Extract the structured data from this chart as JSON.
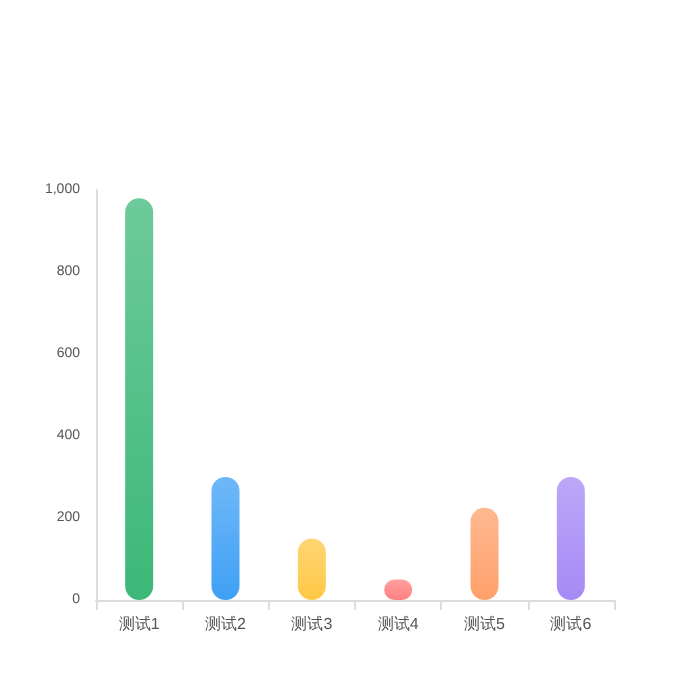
{
  "chart_data": {
    "type": "bar",
    "categories": [
      "测试1",
      "测试2",
      "测试3",
      "测试4",
      "测试5",
      "测试6"
    ],
    "values": [
      980,
      300,
      150,
      50,
      225,
      300
    ],
    "colors": [
      "#3cb878",
      "#3fa0f5",
      "#ffc845",
      "#ff8080",
      "#ffa06b",
      "#a68af5"
    ],
    "ylim": [
      0,
      1000
    ],
    "yticks": [
      0,
      200,
      400,
      600,
      800,
      {
        "value": 1000,
        "label": "1,000"
      }
    ],
    "grid": false
  }
}
